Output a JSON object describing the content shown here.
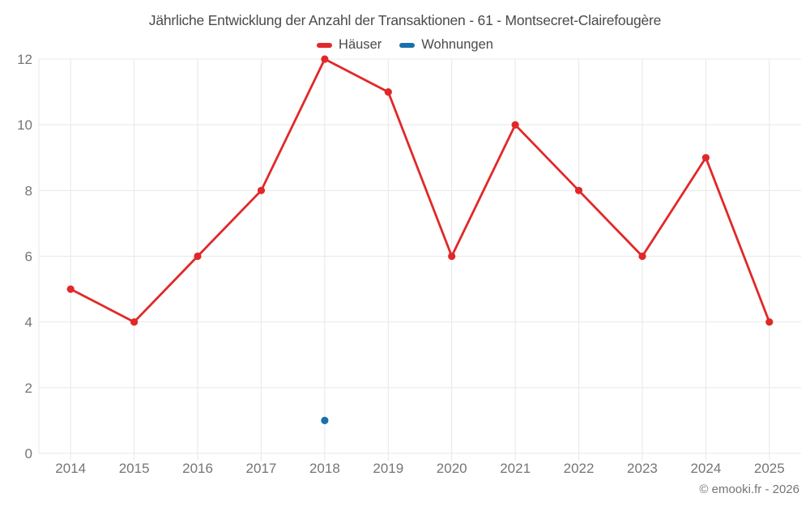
{
  "title": "Jährliche Entwicklung der Anzahl der Transaktionen - 61 - Montsecret-Clairefougère",
  "copyright": "© emooki.fr - 2026",
  "legend": [
    {
      "label": "Häuser",
      "color": "#e12828"
    },
    {
      "label": "Wohnungen",
      "color": "#1a6fad"
    }
  ],
  "colors": {
    "grid": "#e8e8e8",
    "axis_label": "#757575",
    "title": "#4a4a4a",
    "background": "#ffffff",
    "hauser_red": "#e12828",
    "wohnungen_blue": "#1a6fad"
  },
  "chart_data": {
    "type": "line",
    "title": "Jährliche Entwicklung der Anzahl der Transaktionen - 61 - Montsecret-Clairefougère",
    "x": [
      2014,
      2015,
      2016,
      2017,
      2018,
      2019,
      2020,
      2021,
      2022,
      2023,
      2024,
      2025
    ],
    "series": [
      {
        "name": "Häuser",
        "color": "#e12828",
        "values": [
          5,
          4,
          6,
          8,
          12,
          11,
          6,
          10,
          8,
          6,
          9,
          4
        ]
      },
      {
        "name": "Wohnungen",
        "color": "#1a6fad",
        "values": [
          null,
          null,
          null,
          null,
          1,
          null,
          null,
          null,
          null,
          null,
          null,
          null
        ]
      }
    ],
    "xlabel": "",
    "ylabel": "",
    "ylim": [
      0,
      12
    ],
    "yticks": [
      0,
      2,
      4,
      6,
      8,
      10,
      12
    ],
    "grid": true,
    "legend_position": "top"
  }
}
